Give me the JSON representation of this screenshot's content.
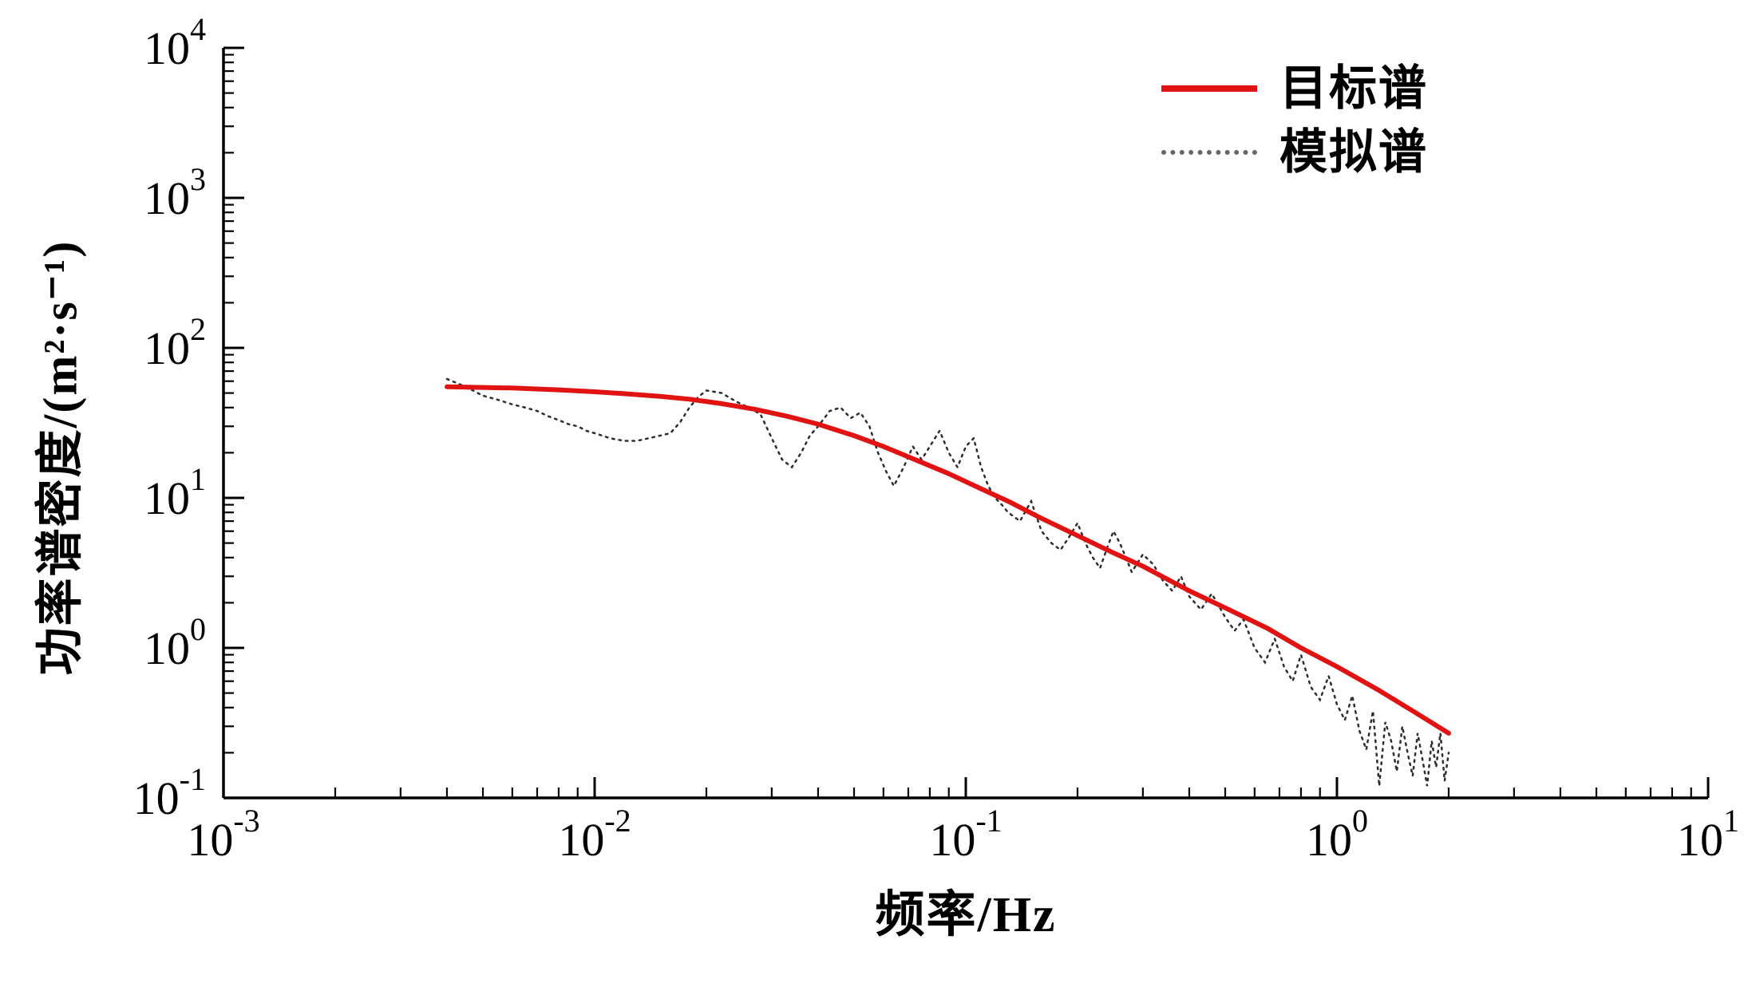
{
  "figure": {
    "background": "#ffffff",
    "axis_color": "#000000"
  },
  "chart_data": {
    "type": "line",
    "title": "",
    "xlabel": "频率/Hz",
    "ylabel": "功率谱密度/(m²·s⁻¹)",
    "x_scale": "log",
    "y_scale": "log",
    "xlim": [
      0.001,
      10
    ],
    "ylim": [
      0.1,
      10000
    ],
    "x_tick_exponents": [
      -3,
      -2,
      -1,
      0,
      1
    ],
    "y_tick_exponents": [
      -1,
      0,
      1,
      2,
      3,
      4
    ],
    "grid": false,
    "legend_position": "top-right",
    "series": [
      {
        "name": "目标谱",
        "color": "#e01212",
        "line": "solid",
        "width": 6,
        "points": [
          [
            0.004,
            55
          ],
          [
            0.005,
            54.5
          ],
          [
            0.006,
            54
          ],
          [
            0.008,
            52.5
          ],
          [
            0.01,
            51
          ],
          [
            0.012,
            49.5
          ],
          [
            0.015,
            47.5
          ],
          [
            0.018,
            45.5
          ],
          [
            0.022,
            42.5
          ],
          [
            0.027,
            39
          ],
          [
            0.033,
            35
          ],
          [
            0.04,
            31
          ],
          [
            0.05,
            26
          ],
          [
            0.06,
            22
          ],
          [
            0.075,
            17.5
          ],
          [
            0.09,
            14.5
          ],
          [
            0.11,
            11.5
          ],
          [
            0.13,
            9.5
          ],
          [
            0.16,
            7.3
          ],
          [
            0.2,
            5.6
          ],
          [
            0.25,
            4.3
          ],
          [
            0.3,
            3.5
          ],
          [
            0.4,
            2.4
          ],
          [
            0.5,
            1.85
          ],
          [
            0.65,
            1.35
          ],
          [
            0.8,
            1.0
          ],
          [
            1.0,
            0.75
          ],
          [
            1.3,
            0.52
          ],
          [
            1.6,
            0.38
          ],
          [
            2.0,
            0.27
          ]
        ]
      },
      {
        "name": "模拟谱",
        "color": "#2e2e2e",
        "line": "dotted",
        "width": 2.5,
        "points": [
          [
            0.004,
            62
          ],
          [
            0.0045,
            55
          ],
          [
            0.005,
            48
          ],
          [
            0.0055,
            45
          ],
          [
            0.006,
            42
          ],
          [
            0.0065,
            40
          ],
          [
            0.007,
            38
          ],
          [
            0.0075,
            35
          ],
          [
            0.008,
            33
          ],
          [
            0.0085,
            31
          ],
          [
            0.009,
            30
          ],
          [
            0.0095,
            28
          ],
          [
            0.01,
            27
          ],
          [
            0.011,
            25
          ],
          [
            0.012,
            24
          ],
          [
            0.013,
            24
          ],
          [
            0.014,
            25
          ],
          [
            0.015,
            26
          ],
          [
            0.016,
            27
          ],
          [
            0.017,
            32
          ],
          [
            0.018,
            40
          ],
          [
            0.019,
            47
          ],
          [
            0.02,
            52
          ],
          [
            0.021,
            51
          ],
          [
            0.022,
            50
          ],
          [
            0.024,
            44
          ],
          [
            0.026,
            40
          ],
          [
            0.028,
            36
          ],
          [
            0.03,
            25
          ],
          [
            0.032,
            18
          ],
          [
            0.034,
            16
          ],
          [
            0.036,
            20
          ],
          [
            0.038,
            26
          ],
          [
            0.04,
            30
          ],
          [
            0.043,
            38
          ],
          [
            0.046,
            40
          ],
          [
            0.049,
            34
          ],
          [
            0.052,
            37
          ],
          [
            0.055,
            30
          ],
          [
            0.058,
            20
          ],
          [
            0.061,
            15
          ],
          [
            0.064,
            12
          ],
          [
            0.068,
            16
          ],
          [
            0.072,
            22
          ],
          [
            0.076,
            18
          ],
          [
            0.08,
            22
          ],
          [
            0.085,
            28
          ],
          [
            0.09,
            20
          ],
          [
            0.095,
            16
          ],
          [
            0.1,
            22
          ],
          [
            0.105,
            25
          ],
          [
            0.11,
            16
          ],
          [
            0.115,
            12
          ],
          [
            0.12,
            10
          ],
          [
            0.125,
            9
          ],
          [
            0.13,
            8
          ],
          [
            0.14,
            7
          ],
          [
            0.15,
            9.5
          ],
          [
            0.16,
            6
          ],
          [
            0.17,
            5
          ],
          [
            0.18,
            4.5
          ],
          [
            0.19,
            5.5
          ],
          [
            0.2,
            6.8
          ],
          [
            0.21,
            5
          ],
          [
            0.22,
            4
          ],
          [
            0.23,
            3.4
          ],
          [
            0.24,
            4.6
          ],
          [
            0.25,
            6
          ],
          [
            0.26,
            5
          ],
          [
            0.27,
            4
          ],
          [
            0.28,
            3.2
          ],
          [
            0.3,
            4.2
          ],
          [
            0.32,
            3.6
          ],
          [
            0.34,
            2.8
          ],
          [
            0.36,
            2.4
          ],
          [
            0.38,
            3.0
          ],
          [
            0.4,
            2.2
          ],
          [
            0.43,
            1.8
          ],
          [
            0.46,
            2.3
          ],
          [
            0.5,
            1.6
          ],
          [
            0.53,
            1.3
          ],
          [
            0.56,
            1.55
          ],
          [
            0.6,
            1.0
          ],
          [
            0.64,
            0.8
          ],
          [
            0.68,
            1.15
          ],
          [
            0.72,
            0.75
          ],
          [
            0.76,
            0.6
          ],
          [
            0.8,
            0.9
          ],
          [
            0.85,
            0.55
          ],
          [
            0.9,
            0.45
          ],
          [
            0.95,
            0.65
          ],
          [
            1.0,
            0.42
          ],
          [
            1.05,
            0.33
          ],
          [
            1.1,
            0.48
          ],
          [
            1.15,
            0.28
          ],
          [
            1.2,
            0.21
          ],
          [
            1.25,
            0.38
          ],
          [
            1.3,
            0.12
          ],
          [
            1.35,
            0.32
          ],
          [
            1.4,
            0.24
          ],
          [
            1.45,
            0.15
          ],
          [
            1.5,
            0.3
          ],
          [
            1.55,
            0.2
          ],
          [
            1.6,
            0.14
          ],
          [
            1.65,
            0.27
          ],
          [
            1.7,
            0.18
          ],
          [
            1.75,
            0.12
          ],
          [
            1.8,
            0.24
          ],
          [
            1.85,
            0.16
          ],
          [
            1.9,
            0.27
          ],
          [
            1.95,
            0.13
          ],
          [
            2.0,
            0.2
          ]
        ]
      }
    ]
  }
}
